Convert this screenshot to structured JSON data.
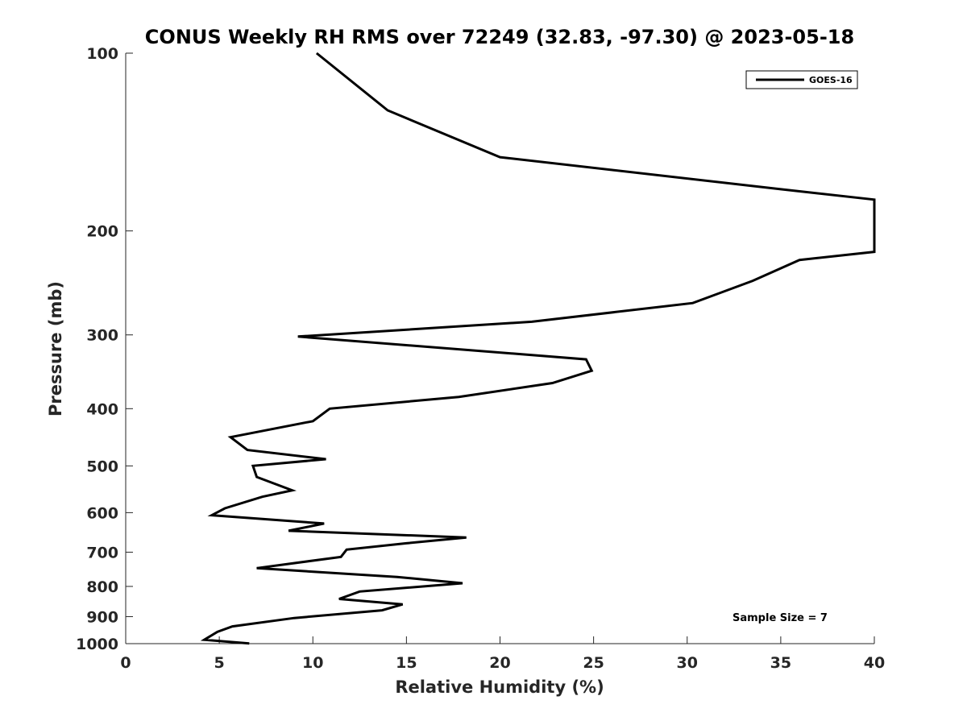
{
  "chart_data": {
    "type": "line",
    "title": "CONUS Weekly RH RMS over 72249 (32.83, -97.30) @ 2023-05-18",
    "xlabel": "Relative Humidity (%)",
    "ylabel": "Pressure (mb)",
    "xlim": [
      0,
      40
    ],
    "ylim": [
      100,
      1000
    ],
    "y_scale": "log",
    "y_reversed": true,
    "x_ticks": [
      "0",
      "5",
      "10",
      "15",
      "20",
      "25",
      "30",
      "35",
      "40"
    ],
    "y_ticks": [
      "100",
      "200",
      "300",
      "400",
      "500",
      "600",
      "700",
      "800",
      "900",
      "1000"
    ],
    "legend_position": "top-right",
    "annotation": "Sample Size = 7",
    "line_color": "#000000",
    "series": [
      {
        "name": "GOES-16",
        "points": [
          [
            10.2,
            100
          ],
          [
            14.0,
            125
          ],
          [
            20.0,
            150
          ],
          [
            35.0,
            170
          ],
          [
            40.0,
            177
          ],
          [
            40.0,
            217
          ],
          [
            36.0,
            224
          ],
          [
            33.5,
            243
          ],
          [
            30.3,
            265
          ],
          [
            21.7,
            285
          ],
          [
            9.2,
            302
          ],
          [
            24.6,
            330
          ],
          [
            24.9,
            345
          ],
          [
            22.8,
            362
          ],
          [
            17.8,
            382
          ],
          [
            10.9,
            400
          ],
          [
            10.0,
            420
          ],
          [
            5.6,
            447
          ],
          [
            6.5,
            470
          ],
          [
            10.7,
            487
          ],
          [
            6.8,
            500
          ],
          [
            7.0,
            522
          ],
          [
            8.9,
            550
          ],
          [
            7.3,
            564
          ],
          [
            5.3,
            590
          ],
          [
            4.6,
            606
          ],
          [
            10.6,
            626
          ],
          [
            8.7,
            644
          ],
          [
            18.2,
            661
          ],
          [
            15.0,
            676
          ],
          [
            11.8,
            693
          ],
          [
            11.5,
            713
          ],
          [
            7.0,
            745
          ],
          [
            14.5,
            771
          ],
          [
            18.0,
            790
          ],
          [
            12.5,
            816
          ],
          [
            11.4,
            840
          ],
          [
            14.8,
            858
          ],
          [
            13.7,
            878
          ],
          [
            9.0,
            905
          ],
          [
            5.7,
            935
          ],
          [
            4.9,
            955
          ],
          [
            4.2,
            985
          ],
          [
            6.6,
            999
          ]
        ]
      }
    ]
  }
}
